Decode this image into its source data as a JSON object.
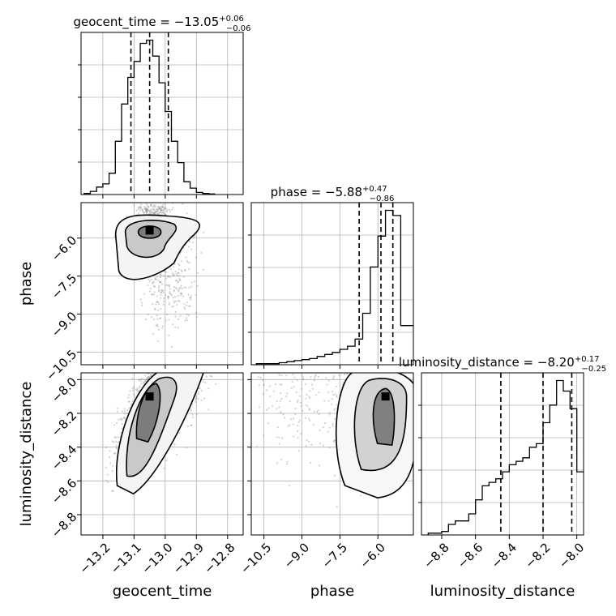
{
  "colors": {
    "line": "#000000",
    "grid": "#b0b0b0",
    "scatter": "#7f7f7f"
  },
  "chart_data": [
    {
      "type": "histogram",
      "panel": "geocent_time",
      "title_text": "geocent_time = −13.05",
      "title_sup": "+0.06",
      "title_sub": "−0.06",
      "xlim": [
        -13.27,
        -12.75
      ],
      "bin_edges": [
        -13.26,
        -13.24,
        -13.22,
        -13.2,
        -13.18,
        -13.16,
        -13.14,
        -13.12,
        -13.1,
        -13.08,
        -13.06,
        -13.04,
        -13.02,
        -13.0,
        -12.98,
        -12.96,
        -12.94,
        -12.92,
        -12.9,
        -12.88,
        -12.86,
        -12.84
      ],
      "values": [
        1,
        3,
        7,
        10,
        20,
        50,
        85,
        110,
        125,
        142,
        145,
        130,
        105,
        78,
        50,
        30,
        12,
        6,
        2,
        1,
        0.5
      ],
      "quantiles": [
        -13.11,
        -13.05,
        -12.99
      ],
      "grid": true
    },
    {
      "type": "histogram",
      "panel": "phase",
      "title_text": "phase = −5.88",
      "title_sup": "+0.47",
      "title_sub": "−0.86",
      "xlim": [
        -11.0,
        -4.6
      ],
      "bin_edges": [
        -10.8,
        -10.5,
        -10.2,
        -9.9,
        -9.6,
        -9.3,
        -9.0,
        -8.7,
        -8.4,
        -8.1,
        -7.8,
        -7.5,
        -7.2,
        -6.9,
        -6.6,
        -6.3,
        -6.0,
        -5.7,
        -5.4,
        -5.1,
        -4.8,
        -4.6
      ],
      "values": [
        1,
        1,
        1,
        2,
        3,
        4,
        5,
        6,
        8,
        10,
        12,
        15,
        18,
        25,
        50,
        95,
        125,
        150,
        145,
        38,
        38
      ],
      "quantiles": [
        -6.74,
        -5.88,
        -5.41
      ],
      "grid": true
    },
    {
      "type": "histogram",
      "panel": "luminosity_distance",
      "title_text": "luminosity_distance = −8.20",
      "title_sup": "+0.17",
      "title_sub": "−0.25",
      "xlim": [
        -8.92,
        -7.96
      ],
      "bin_edges": [
        -8.88,
        -8.84,
        -8.8,
        -8.76,
        -8.72,
        -8.68,
        -8.64,
        -8.6,
        -8.56,
        -8.52,
        -8.48,
        -8.44,
        -8.4,
        -8.36,
        -8.32,
        -8.28,
        -8.24,
        -8.2,
        -8.16,
        -8.12,
        -8.08,
        -8.04,
        -8.0,
        -7.96
      ],
      "values": [
        0.5,
        0.5,
        1,
        3,
        4,
        4,
        6,
        10,
        14,
        15,
        16,
        18,
        20,
        21,
        22,
        25,
        26,
        32,
        37,
        44,
        41,
        36,
        18
      ],
      "quantiles": [
        -8.45,
        -8.2,
        -8.03
      ],
      "grid": true
    },
    {
      "type": "2d-density",
      "x": "geocent_time",
      "y": "phase",
      "xlim": [
        -13.27,
        -12.75
      ],
      "ylim": [
        -11.0,
        -4.6
      ],
      "mode": [
        -13.05,
        -5.7
      ],
      "grid": true
    },
    {
      "type": "2d-density",
      "x": "geocent_time",
      "y": "luminosity_distance",
      "xlim": [
        -13.27,
        -12.75
      ],
      "ylim": [
        -8.92,
        -7.96
      ],
      "mode": [
        -13.05,
        -8.1
      ],
      "grid": true
    },
    {
      "type": "2d-density",
      "x": "phase",
      "y": "luminosity_distance",
      "xlim": [
        -11.0,
        -4.6
      ],
      "ylim": [
        -8.92,
        -7.96
      ],
      "mode": [
        -5.7,
        -8.1
      ],
      "grid": true
    }
  ],
  "axes": {
    "geocent_time": {
      "label": "geocent_time",
      "ticks": [
        -13.2,
        -13.1,
        -13.0,
        -12.9,
        -12.8
      ],
      "tick_labels": [
        "−13.2",
        "−13.1",
        "−13.0",
        "−12.9",
        "−12.8"
      ]
    },
    "phase": {
      "label": "phase",
      "ticks": [
        -10.5,
        -9.0,
        -7.5,
        -6.0
      ],
      "tick_labels": [
        "−10.5",
        "−9.0",
        "−7.5",
        "−6.0"
      ]
    },
    "luminosity_distance": {
      "label": "luminosity_distance",
      "ticks": [
        -8.8,
        -8.6,
        -8.4,
        -8.2,
        -8.0
      ],
      "tick_labels": [
        "−8.8",
        "−8.6",
        "−8.4",
        "−8.2",
        "−8.0"
      ]
    }
  }
}
